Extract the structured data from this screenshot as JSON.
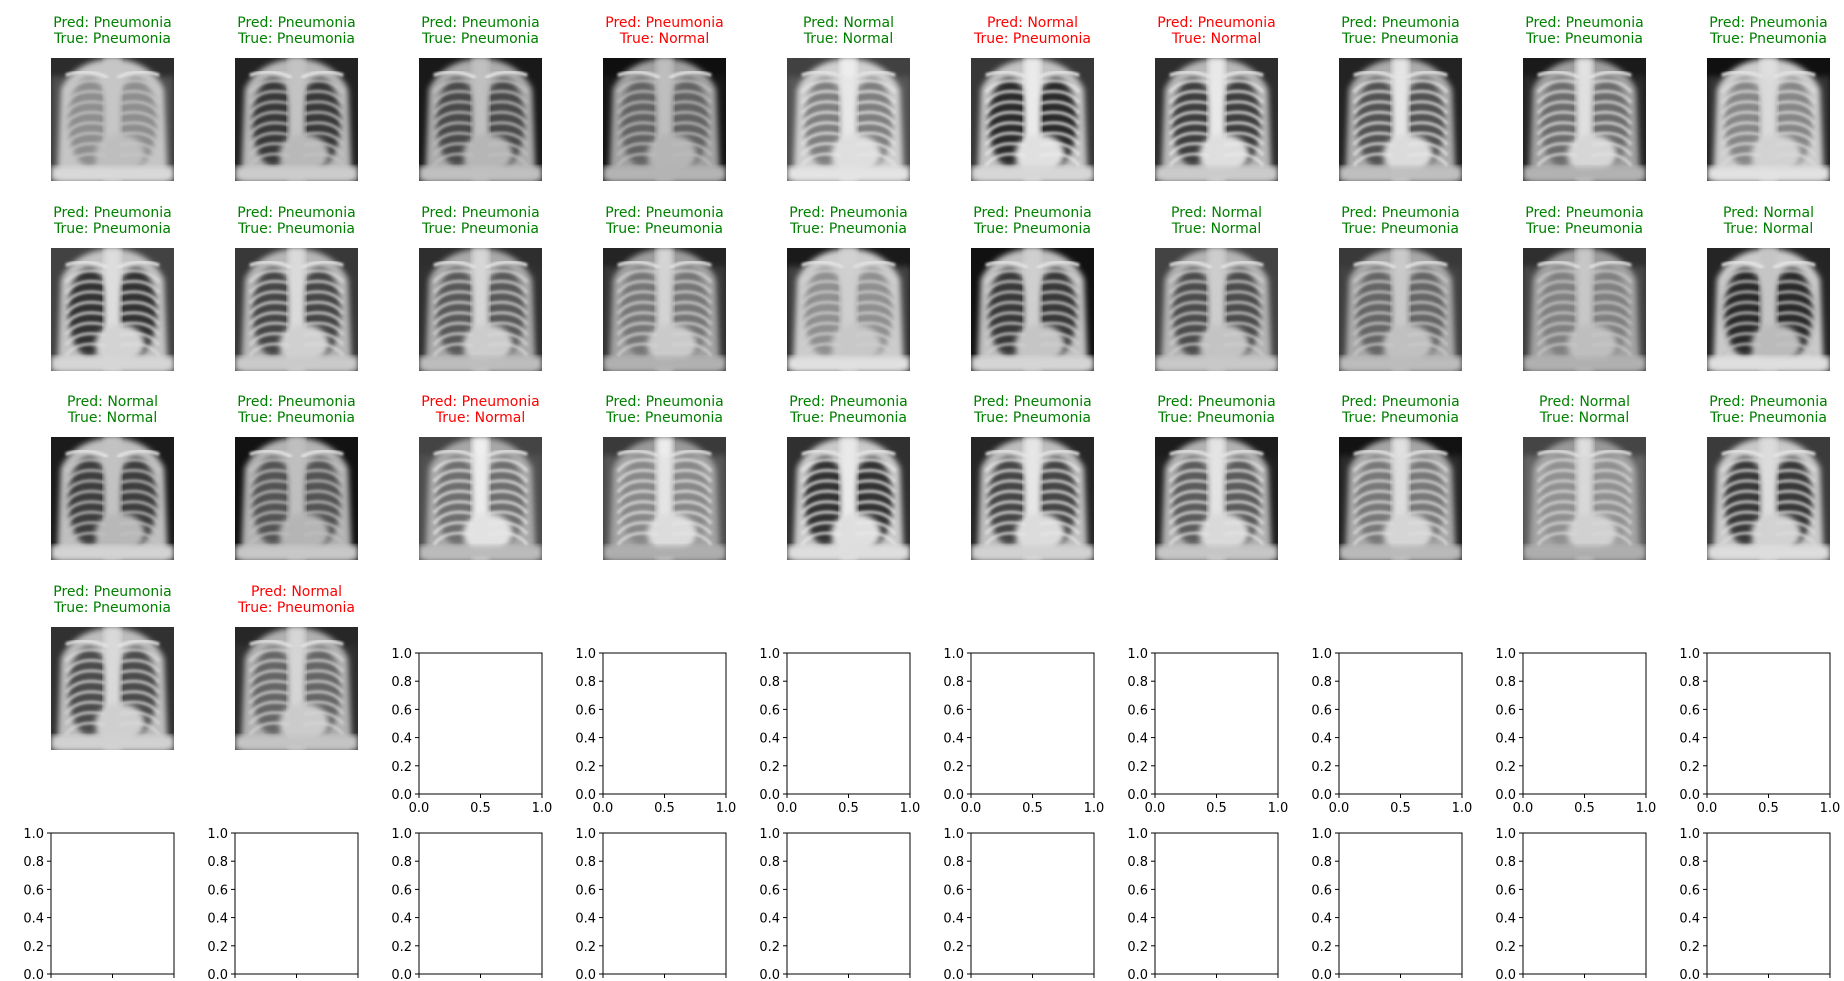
{
  "colors": {
    "correct": "#008000",
    "incorrect": "#ff0000",
    "axis": "#000000",
    "background": "#ffffff"
  },
  "chart_data": {
    "type": "image_grid",
    "grid": {
      "rows": 5,
      "cols": 10
    },
    "title_format": [
      "Pred: {pred}",
      "True: {true}"
    ],
    "images": [
      {
        "pred": "Pneumonia",
        "true": "Pneumonia",
        "variant": 0
      },
      {
        "pred": "Pneumonia",
        "true": "Pneumonia",
        "variant": 1
      },
      {
        "pred": "Pneumonia",
        "true": "Pneumonia",
        "variant": 2
      },
      {
        "pred": "Pneumonia",
        "true": "Normal",
        "variant": 3
      },
      {
        "pred": "Normal",
        "true": "Normal",
        "variant": 4
      },
      {
        "pred": "Normal",
        "true": "Pneumonia",
        "variant": 5
      },
      {
        "pred": "Pneumonia",
        "true": "Normal",
        "variant": 6
      },
      {
        "pred": "Pneumonia",
        "true": "Pneumonia",
        "variant": 7
      },
      {
        "pred": "Pneumonia",
        "true": "Pneumonia",
        "variant": 8
      },
      {
        "pred": "Pneumonia",
        "true": "Pneumonia",
        "variant": 9
      },
      {
        "pred": "Pneumonia",
        "true": "Pneumonia",
        "variant": 10
      },
      {
        "pred": "Pneumonia",
        "true": "Pneumonia",
        "variant": 11
      },
      {
        "pred": "Pneumonia",
        "true": "Pneumonia",
        "variant": 12
      },
      {
        "pred": "Pneumonia",
        "true": "Pneumonia",
        "variant": 13
      },
      {
        "pred": "Pneumonia",
        "true": "Pneumonia",
        "variant": 14
      },
      {
        "pred": "Pneumonia",
        "true": "Pneumonia",
        "variant": 15
      },
      {
        "pred": "Normal",
        "true": "Normal",
        "variant": 16
      },
      {
        "pred": "Pneumonia",
        "true": "Pneumonia",
        "variant": 17
      },
      {
        "pred": "Pneumonia",
        "true": "Pneumonia",
        "variant": 18
      },
      {
        "pred": "Normal",
        "true": "Normal",
        "variant": 19
      },
      {
        "pred": "Normal",
        "true": "Normal",
        "variant": 20
      },
      {
        "pred": "Pneumonia",
        "true": "Pneumonia",
        "variant": 21
      },
      {
        "pred": "Pneumonia",
        "true": "Normal",
        "variant": 22
      },
      {
        "pred": "Pneumonia",
        "true": "Pneumonia",
        "variant": 23
      },
      {
        "pred": "Pneumonia",
        "true": "Pneumonia",
        "variant": 24
      },
      {
        "pred": "Pneumonia",
        "true": "Pneumonia",
        "variant": 25
      },
      {
        "pred": "Pneumonia",
        "true": "Pneumonia",
        "variant": 26
      },
      {
        "pred": "Pneumonia",
        "true": "Pneumonia",
        "variant": 27
      },
      {
        "pred": "Normal",
        "true": "Normal",
        "variant": 28
      },
      {
        "pred": "Pneumonia",
        "true": "Pneumonia",
        "variant": 29
      },
      {
        "pred": "Pneumonia",
        "true": "Pneumonia",
        "variant": 30
      },
      {
        "pred": "Normal",
        "true": "Pneumonia",
        "variant": 31
      }
    ],
    "empty_axes": {
      "count": 18,
      "xlim": [
        0.0,
        1.0
      ],
      "ylim": [
        0.0,
        1.0
      ],
      "xticks": [
        "0.0",
        "0.5",
        "1.0"
      ],
      "yticks": [
        "0.0",
        "0.2",
        "0.4",
        "0.6",
        "0.8",
        "1.0"
      ]
    }
  }
}
